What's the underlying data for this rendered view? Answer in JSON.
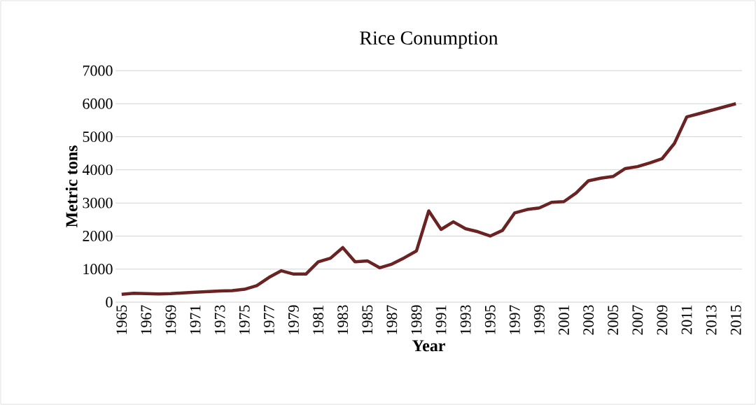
{
  "chart_data": {
    "type": "line",
    "title": "Rice Conumption",
    "xlabel": "Year",
    "ylabel": "Metric tons",
    "categories": [
      "1965",
      null,
      "1967",
      null,
      "1969",
      null,
      "1971",
      null,
      "1973",
      null,
      "1975",
      null,
      "1977",
      null,
      "1979",
      null,
      "1981",
      null,
      "1983",
      null,
      "1985",
      null,
      "1987",
      null,
      "1989",
      null,
      "1991",
      null,
      "1993",
      null,
      "1995",
      null,
      "1997",
      null,
      "1999",
      null,
      "2001",
      null,
      "2003",
      null,
      "2005",
      null,
      "2007",
      null,
      "2009",
      null,
      "2011",
      null,
      "2013",
      null,
      "2015"
    ],
    "values": [
      240,
      270,
      260,
      250,
      260,
      280,
      300,
      320,
      340,
      350,
      390,
      500,
      750,
      950,
      850,
      850,
      1220,
      1330,
      1650,
      1220,
      1250,
      1040,
      1150,
      1340,
      1550,
      2760,
      2200,
      2430,
      2220,
      2130,
      2000,
      2170,
      2700,
      2800,
      2850,
      3020,
      3040,
      3300,
      3670,
      3750,
      3800,
      4040,
      4100,
      4210,
      4340,
      4800,
      5600,
      5700,
      5800,
      5900,
      6000
    ],
    "color": "#6b2222",
    "ylim": [
      0,
      7000
    ],
    "yticks": [
      0,
      1000,
      2000,
      3000,
      4000,
      5000,
      6000,
      7000
    ],
    "grid": "y",
    "marker": "none",
    "line_style": "solid"
  }
}
